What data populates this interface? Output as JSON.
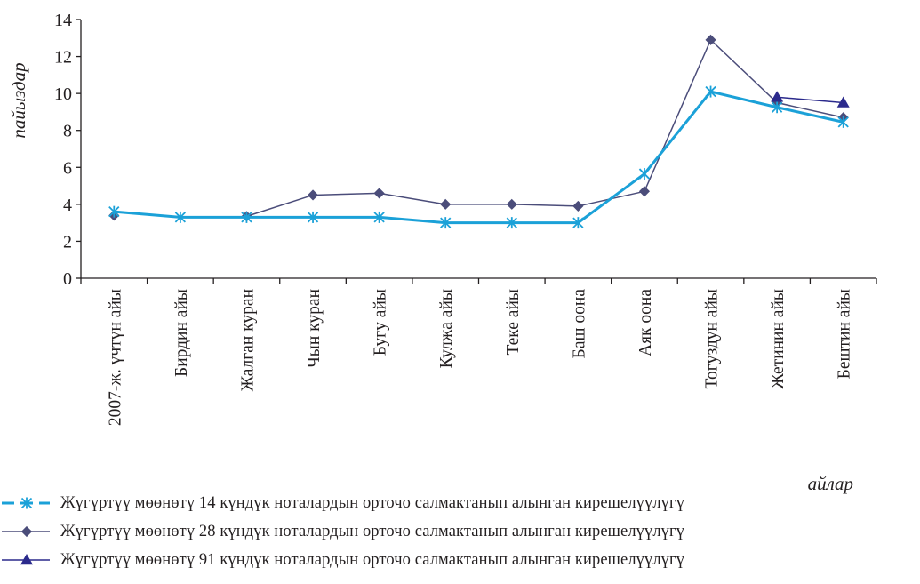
{
  "chart_data": {
    "type": "line",
    "title": "",
    "xlabel": "айлар",
    "ylabel": "пайыздар",
    "ylim": [
      0,
      14
    ],
    "yticks": [
      "0",
      "2",
      "4",
      "6",
      "8",
      "10",
      "12",
      "14"
    ],
    "categories": [
      "2007-ж. үчтүн айы",
      "Бирдин айы",
      "Жалган куран",
      "Чын куран",
      "Бугу айы",
      "Кулжа айы",
      "Теке айы",
      "Баш оона",
      "Аяк оона",
      "Тогуздун айы",
      "Жетинин айы",
      "Бештин айы"
    ],
    "grid": false,
    "legend_position": "bottom",
    "series": [
      {
        "name": "Жүгүртүү мөөнөтү 14 күндүк ноталардын орточо салмактанып алынган кирешелүүлүгү",
        "color": "#1ba1d8",
        "marker": "asterisk",
        "values": [
          3.6,
          3.3,
          3.3,
          3.3,
          3.3,
          3.0,
          3.0,
          3.0,
          5.65,
          10.1,
          9.25,
          8.45
        ]
      },
      {
        "name": "Жүгүртүү мөөнөтү 28 күндүк ноталардын орточо салмактанып алынган кирешелүүлүгү",
        "color": "#4b4d7a",
        "marker": "diamond",
        "values": [
          3.4,
          null,
          3.35,
          4.5,
          4.6,
          4.0,
          4.0,
          3.9,
          4.7,
          12.9,
          9.5,
          8.7
        ]
      },
      {
        "name": "Жүгүртүү мөөнөтү 91 күндүк ноталардын орточо салмактанып алынган кирешелүүлүгү",
        "color": "#2b2a8c",
        "marker": "triangle",
        "values": [
          null,
          null,
          null,
          null,
          null,
          null,
          null,
          null,
          null,
          null,
          9.8,
          9.5
        ]
      }
    ]
  }
}
